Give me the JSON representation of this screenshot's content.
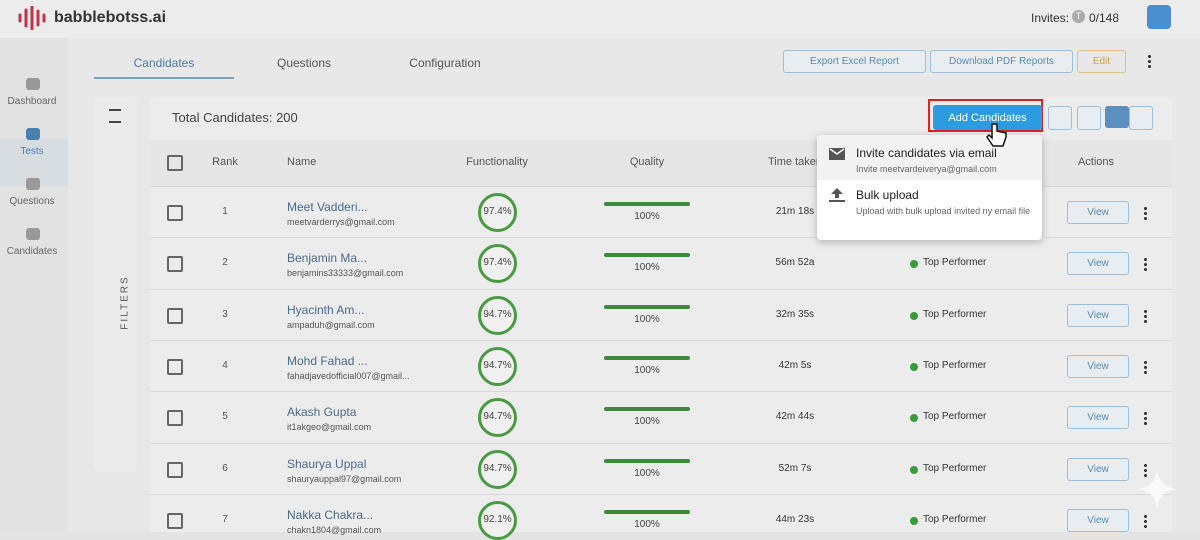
{
  "header": {
    "logo": "babblebotss.ai",
    "invites_label": "Invites:",
    "invites_badge": "T",
    "invites_count": "0/148"
  },
  "sidebar": [
    "Dashboard",
    "Tests",
    "Questions",
    "Candidates"
  ],
  "tabs": [
    "Candidates",
    "Questions",
    "Configuration"
  ],
  "toolbar": {
    "export": "Export Excel Report",
    "download": "Download PDF Reports",
    "edit": "Edit"
  },
  "filters": "FILTERS",
  "total": "Total Candidates: 200",
  "add_button": "Add Candidates",
  "table": {
    "columns": [
      "Rank",
      "Name",
      "Functionality",
      "Quality",
      "Time taken",
      "Actions"
    ],
    "rows": [
      [
        "1",
        "Meet Vadderi...",
        "meetvarderrys@gmail.com",
        "97.4%",
        "100%",
        "21m 18s",
        "",
        "View"
      ],
      [
        "2",
        "Benjamin Ma...",
        "benjamins33333@gmail.com",
        "97.4%",
        "100%",
        "56m 52a",
        "Top Performer",
        "View"
      ],
      [
        "3",
        "Hyacinth Am...",
        "ampaduh@gmail.com",
        "94.7%",
        "100%",
        "32m 35s",
        "Top Performer",
        "View"
      ],
      [
        "4",
        "Mohd Fahad ...",
        "fahadjavedofficial007@gmail...",
        "94.7%",
        "100%",
        "42m 5s",
        "Top Performer",
        "View"
      ],
      [
        "5",
        "Akash Gupta",
        "it1akgeo@gmail.com",
        "94.7%",
        "100%",
        "42m 44s",
        "Top Performer",
        "View"
      ],
      [
        "6",
        "Shaurya Uppal",
        "shauryauppal97@gmail.com",
        "94.7%",
        "100%",
        "52m 7s",
        "Top Performer",
        "View"
      ],
      [
        "7",
        "Nakka Chakra...",
        "chakn1804@gmail.com",
        "92.1%",
        "100%",
        "44m 23s",
        "Top Performer",
        "View"
      ]
    ]
  },
  "dropdown": [
    {
      "title": "Invite candidates via email",
      "subtitle": "Invite meetvardeiverya@gmail.com"
    },
    {
      "title": "Bulk upload",
      "subtitle": "Upload with bulk upload invited ny email file"
    }
  ]
}
